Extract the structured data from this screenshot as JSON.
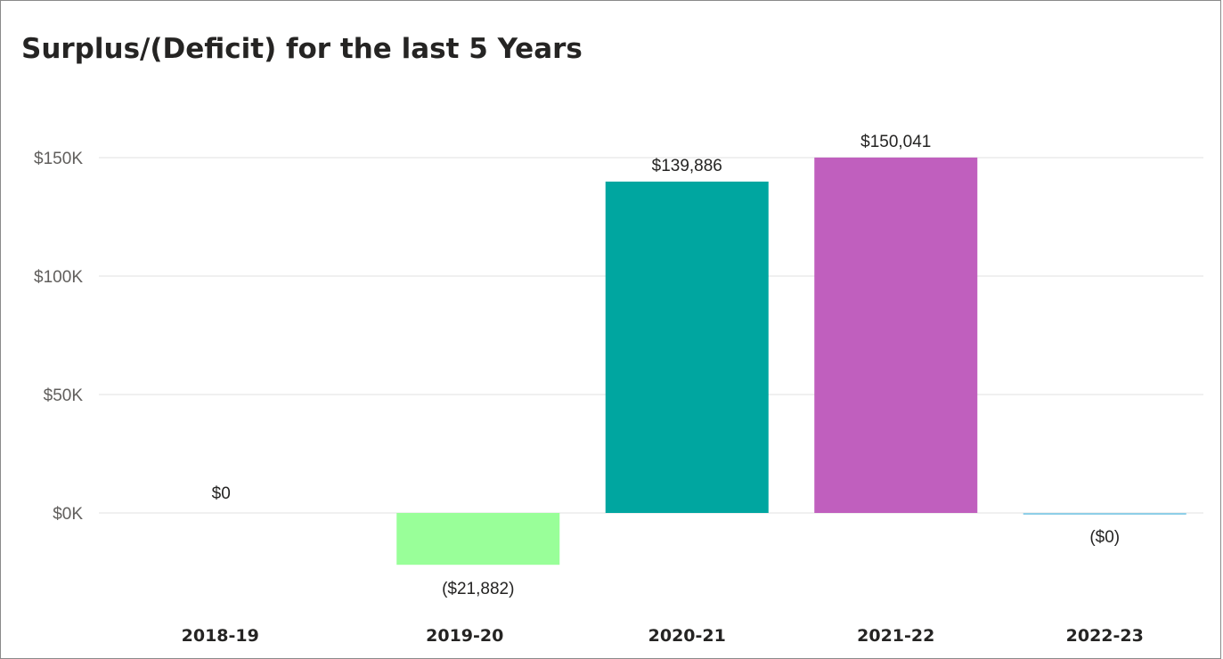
{
  "chart_data": {
    "type": "bar",
    "title": "Surplus/(Deficit) for the last 5 Years",
    "xlabel": "",
    "ylabel": "",
    "categories": [
      "2018-19",
      "2019-20",
      "2020-21",
      "2021-22",
      "2022-23"
    ],
    "values": [
      0,
      -21882,
      139886,
      150041,
      -0.4
    ],
    "data_labels": [
      "$0",
      "($21,882)",
      "$139,886",
      "$150,041",
      "($0)"
    ],
    "colors": [
      "#5fb3e6",
      "#99ff99",
      "#00a6a0",
      "#c05fbe",
      "#8ecfe8"
    ],
    "y_ticks": [
      0,
      50000,
      100000,
      150000
    ],
    "y_tick_labels": [
      "$0K",
      "$50K",
      "$100K",
      "$150K"
    ],
    "ylim": [
      -30000,
      160000
    ],
    "grid": true,
    "legend": "none"
  }
}
